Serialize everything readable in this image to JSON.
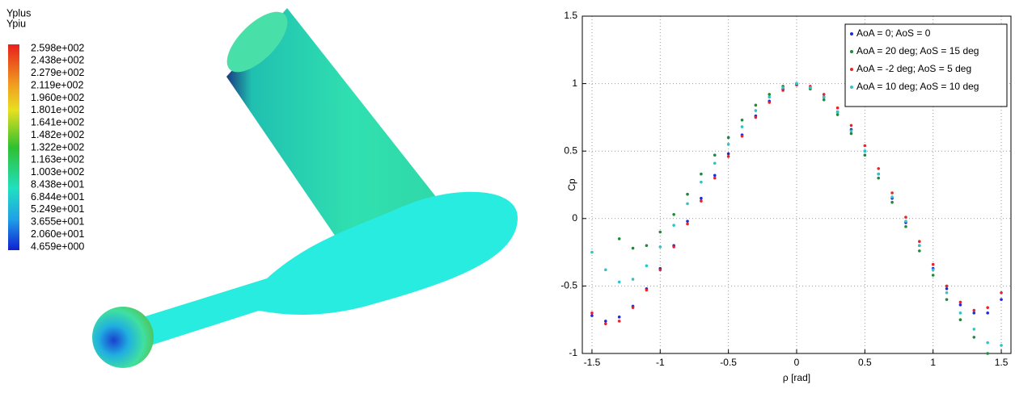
{
  "contour_legend": {
    "title": "Yplus",
    "subtitle": "Ypiu",
    "labels": [
      "2.598e+002",
      "2.438e+002",
      "2.279e+002",
      "2.119e+002",
      "1.960e+002",
      "1.801e+002",
      "1.641e+002",
      "1.482e+002",
      "1.322e+002",
      "1.163e+002",
      "1.003e+002",
      "8.438e+001",
      "6.844e+001",
      "5.249e+001",
      "3.655e+001",
      "2.060e+001",
      "4.659e+000"
    ]
  },
  "chart_data": {
    "type": "scatter",
    "x_label": "ρ [rad]",
    "y_label": "Cp",
    "xlim": [
      -1.5708,
      1.5708
    ],
    "ylim": [
      -1,
      1.5
    ],
    "xticks": [
      -1.5,
      -1,
      -0.5,
      0,
      0.5,
      1,
      1.5
    ],
    "yticks": [
      -1,
      -0.5,
      0,
      0.5,
      1,
      1.5
    ],
    "grid": true,
    "legend": "upper right",
    "x": [
      -1.5,
      -1.4,
      -1.3,
      -1.2,
      -1.1,
      -1.0,
      -0.9,
      -0.8,
      -0.7,
      -0.6,
      -0.5,
      -0.4,
      -0.3,
      -0.2,
      -0.1,
      0,
      0.1,
      0.2,
      0.3,
      0.4,
      0.5,
      0.6,
      0.7,
      0.8,
      0.9,
      1.0,
      1.1,
      1.2,
      1.3,
      1.4,
      1.5
    ],
    "series": [
      {
        "name": "AoA = 0; AoS = 0",
        "color": "#1f2bd6",
        "values": [
          -0.72,
          -0.76,
          -0.73,
          -0.65,
          -0.52,
          -0.37,
          -0.2,
          -0.02,
          0.15,
          0.32,
          0.48,
          0.62,
          0.76,
          0.87,
          0.96,
          1,
          0.97,
          0.9,
          0.79,
          0.66,
          0.5,
          0.33,
          0.15,
          -0.03,
          -0.2,
          -0.37,
          -0.52,
          -0.64,
          -0.7,
          -0.7,
          -0.6
        ]
      },
      {
        "name": "AoA = 20 deg; AoS = 15 deg",
        "color": "#1e8a3c",
        "values": [
          null,
          null,
          -0.15,
          -0.22,
          -0.2,
          -0.1,
          0.03,
          0.18,
          0.33,
          0.47,
          0.6,
          0.73,
          0.84,
          0.92,
          0.98,
          0.99,
          0.96,
          0.88,
          0.77,
          0.63,
          0.47,
          0.3,
          0.12,
          -0.06,
          -0.24,
          -0.42,
          -0.6,
          -0.75,
          -0.88,
          -1.0,
          null
        ]
      },
      {
        "name": "AoA = -2 deg; AoS = 5 deg",
        "color": "#e8242a",
        "values": [
          -0.7,
          -0.78,
          -0.76,
          -0.66,
          -0.53,
          -0.38,
          -0.21,
          -0.04,
          0.13,
          0.3,
          0.46,
          0.61,
          0.75,
          0.86,
          0.95,
          0.99,
          0.98,
          0.92,
          0.82,
          0.69,
          0.54,
          0.37,
          0.19,
          0.01,
          -0.17,
          -0.34,
          -0.5,
          -0.62,
          -0.68,
          -0.66,
          -0.55
        ]
      },
      {
        "name": "AoA = 10 deg; AoS = 10 deg",
        "color": "#2ec4c8",
        "values": [
          -0.25,
          -0.38,
          -0.47,
          -0.45,
          -0.35,
          -0.21,
          -0.05,
          0.11,
          0.27,
          0.41,
          0.55,
          0.68,
          0.8,
          0.9,
          0.97,
          1,
          0.97,
          0.9,
          0.79,
          0.65,
          0.5,
          0.33,
          0.16,
          -0.02,
          -0.2,
          -0.38,
          -0.55,
          -0.7,
          -0.82,
          -0.92,
          -0.94
        ]
      }
    ]
  }
}
